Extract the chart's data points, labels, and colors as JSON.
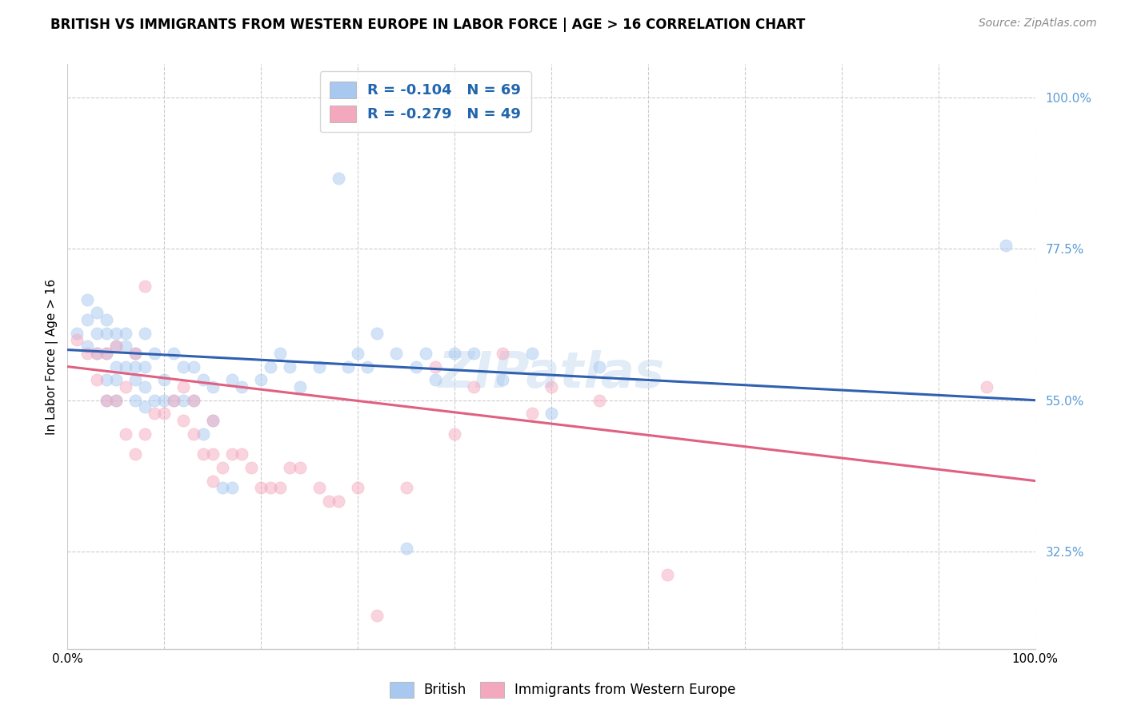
{
  "title": "BRITISH VS IMMIGRANTS FROM WESTERN EUROPE IN LABOR FORCE | AGE > 16 CORRELATION CHART",
  "source": "Source: ZipAtlas.com",
  "ylabel": "In Labor Force | Age > 16",
  "xlim": [
    0.0,
    1.0
  ],
  "ylim": [
    0.18,
    1.05
  ],
  "xticks": [
    0.0,
    0.1,
    0.2,
    0.3,
    0.4,
    0.5,
    0.6,
    0.7,
    0.8,
    0.9,
    1.0
  ],
  "xticklabels": [
    "0.0%",
    "",
    "",
    "",
    "",
    "",
    "",
    "",
    "",
    "",
    "100.0%"
  ],
  "ytick_labels_right": [
    "32.5%",
    "55.0%",
    "77.5%",
    "100.0%"
  ],
  "ytick_vals_right": [
    0.325,
    0.55,
    0.775,
    1.0
  ],
  "blue_color": "#A8C8F0",
  "pink_color": "#F4A8BE",
  "blue_line_color": "#3060B0",
  "pink_line_color": "#E06080",
  "watermark": "ZIPatlas",
  "blue_scatter_x": [
    0.01,
    0.02,
    0.02,
    0.02,
    0.03,
    0.03,
    0.03,
    0.04,
    0.04,
    0.04,
    0.04,
    0.04,
    0.05,
    0.05,
    0.05,
    0.05,
    0.05,
    0.06,
    0.06,
    0.06,
    0.07,
    0.07,
    0.07,
    0.07,
    0.08,
    0.08,
    0.08,
    0.08,
    0.09,
    0.09,
    0.1,
    0.1,
    0.11,
    0.11,
    0.12,
    0.12,
    0.13,
    0.13,
    0.14,
    0.14,
    0.15,
    0.15,
    0.16,
    0.17,
    0.17,
    0.18,
    0.2,
    0.21,
    0.22,
    0.23,
    0.24,
    0.26,
    0.28,
    0.29,
    0.3,
    0.31,
    0.32,
    0.34,
    0.35,
    0.36,
    0.37,
    0.38,
    0.4,
    0.42,
    0.45,
    0.48,
    0.5,
    0.55,
    0.97
  ],
  "blue_scatter_y": [
    0.65,
    0.63,
    0.67,
    0.7,
    0.68,
    0.65,
    0.62,
    0.67,
    0.65,
    0.62,
    0.58,
    0.55,
    0.65,
    0.63,
    0.6,
    0.58,
    0.55,
    0.65,
    0.63,
    0.6,
    0.62,
    0.6,
    0.58,
    0.55,
    0.65,
    0.6,
    0.57,
    0.54,
    0.62,
    0.55,
    0.58,
    0.55,
    0.62,
    0.55,
    0.6,
    0.55,
    0.6,
    0.55,
    0.58,
    0.5,
    0.57,
    0.52,
    0.42,
    0.42,
    0.58,
    0.57,
    0.58,
    0.6,
    0.62,
    0.6,
    0.57,
    0.6,
    0.88,
    0.6,
    0.62,
    0.6,
    0.65,
    0.62,
    0.33,
    0.6,
    0.62,
    0.58,
    0.62,
    0.62,
    0.58,
    0.62,
    0.53,
    0.6,
    0.78
  ],
  "pink_scatter_x": [
    0.01,
    0.02,
    0.03,
    0.03,
    0.04,
    0.04,
    0.05,
    0.05,
    0.06,
    0.06,
    0.07,
    0.07,
    0.08,
    0.08,
    0.09,
    0.1,
    0.11,
    0.12,
    0.12,
    0.13,
    0.13,
    0.14,
    0.15,
    0.15,
    0.15,
    0.16,
    0.17,
    0.18,
    0.19,
    0.2,
    0.21,
    0.22,
    0.23,
    0.24,
    0.26,
    0.27,
    0.28,
    0.3,
    0.32,
    0.35,
    0.38,
    0.4,
    0.42,
    0.45,
    0.48,
    0.5,
    0.55,
    0.62,
    0.95
  ],
  "pink_scatter_y": [
    0.64,
    0.62,
    0.62,
    0.58,
    0.62,
    0.55,
    0.63,
    0.55,
    0.57,
    0.5,
    0.62,
    0.47,
    0.5,
    0.72,
    0.53,
    0.53,
    0.55,
    0.57,
    0.52,
    0.55,
    0.5,
    0.47,
    0.52,
    0.47,
    0.43,
    0.45,
    0.47,
    0.47,
    0.45,
    0.42,
    0.42,
    0.42,
    0.45,
    0.45,
    0.42,
    0.4,
    0.4,
    0.42,
    0.23,
    0.42,
    0.6,
    0.5,
    0.57,
    0.62,
    0.53,
    0.57,
    0.55,
    0.29,
    0.57
  ],
  "blue_trend_y_start": 0.625,
  "blue_trend_y_end": 0.55,
  "pink_trend_y_start": 0.6,
  "pink_trend_y_end": 0.43,
  "grid_color": "#CCCCCC",
  "bg_color": "#FFFFFF",
  "title_fontsize": 12,
  "source_fontsize": 10,
  "axis_label_fontsize": 11,
  "scatter_size": 120,
  "scatter_alpha": 0.5,
  "line_width": 2.2
}
